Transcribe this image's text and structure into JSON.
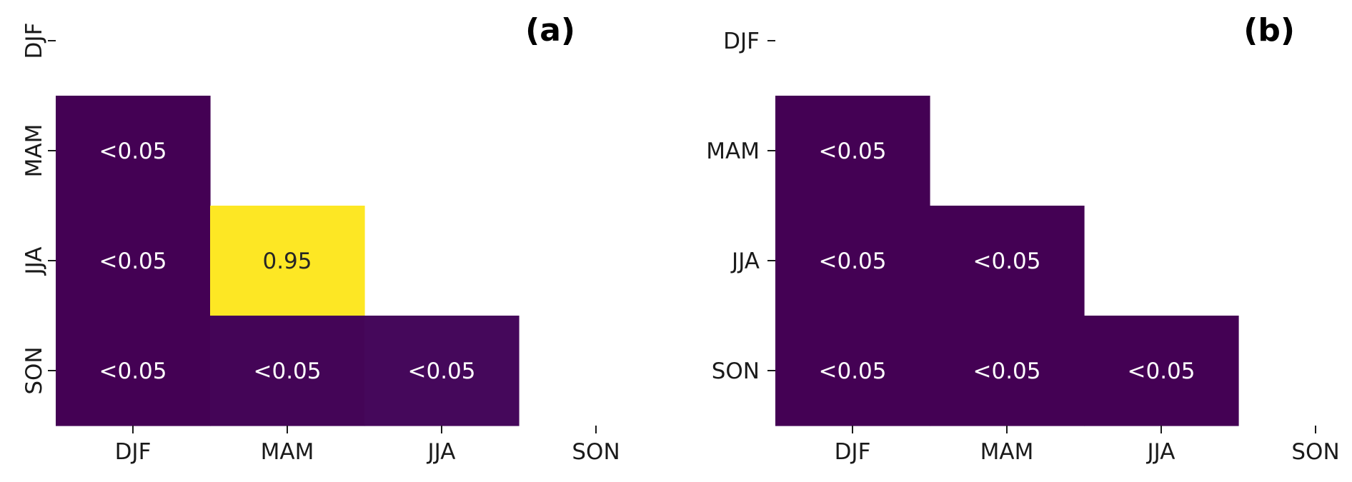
{
  "chart_data": [
    {
      "type": "heatmap",
      "panel_label": "(a)",
      "x_categories": [
        "DJF",
        "MAM",
        "JJA",
        "SON"
      ],
      "y_categories": [
        "DJF",
        "MAM",
        "JJA",
        "SON"
      ],
      "y_tick_rotation": "vertical",
      "cells": [
        {
          "row": "MAM",
          "col": "DJF",
          "value": 0.0,
          "label": "<0.05"
        },
        {
          "row": "JJA",
          "col": "DJF",
          "value": 0.0,
          "label": "<0.05"
        },
        {
          "row": "JJA",
          "col": "MAM",
          "value": 0.95,
          "label": "0.95"
        },
        {
          "row": "SON",
          "col": "DJF",
          "value": 0.0,
          "label": "<0.05"
        },
        {
          "row": "SON",
          "col": "MAM",
          "value": 0.01,
          "label": "<0.05"
        },
        {
          "row": "SON",
          "col": "JJA",
          "value": 0.02,
          "label": "<0.05"
        }
      ],
      "colormap": "viridis",
      "vmin": 0.0,
      "vmax": 0.95,
      "masked": "upper triangle and diagonal"
    },
    {
      "type": "heatmap",
      "panel_label": "(b)",
      "x_categories": [
        "DJF",
        "MAM",
        "JJA",
        "SON"
      ],
      "y_categories": [
        "DJF",
        "MAM",
        "JJA",
        "SON"
      ],
      "y_tick_rotation": "horizontal",
      "cells": [
        {
          "row": "MAM",
          "col": "DJF",
          "value": 0.0,
          "label": "<0.05"
        },
        {
          "row": "JJA",
          "col": "DJF",
          "value": 0.0,
          "label": "<0.05"
        },
        {
          "row": "JJA",
          "col": "MAM",
          "value": 0.0,
          "label": "<0.05"
        },
        {
          "row": "SON",
          "col": "DJF",
          "value": 0.0,
          "label": "<0.05"
        },
        {
          "row": "SON",
          "col": "MAM",
          "value": 0.0,
          "label": "<0.05"
        },
        {
          "row": "SON",
          "col": "JJA",
          "value": 0.0,
          "label": "<0.05"
        }
      ],
      "colormap": "viridis",
      "vmin": 0.0,
      "vmax": 0.95,
      "masked": "upper triangle and diagonal"
    }
  ]
}
